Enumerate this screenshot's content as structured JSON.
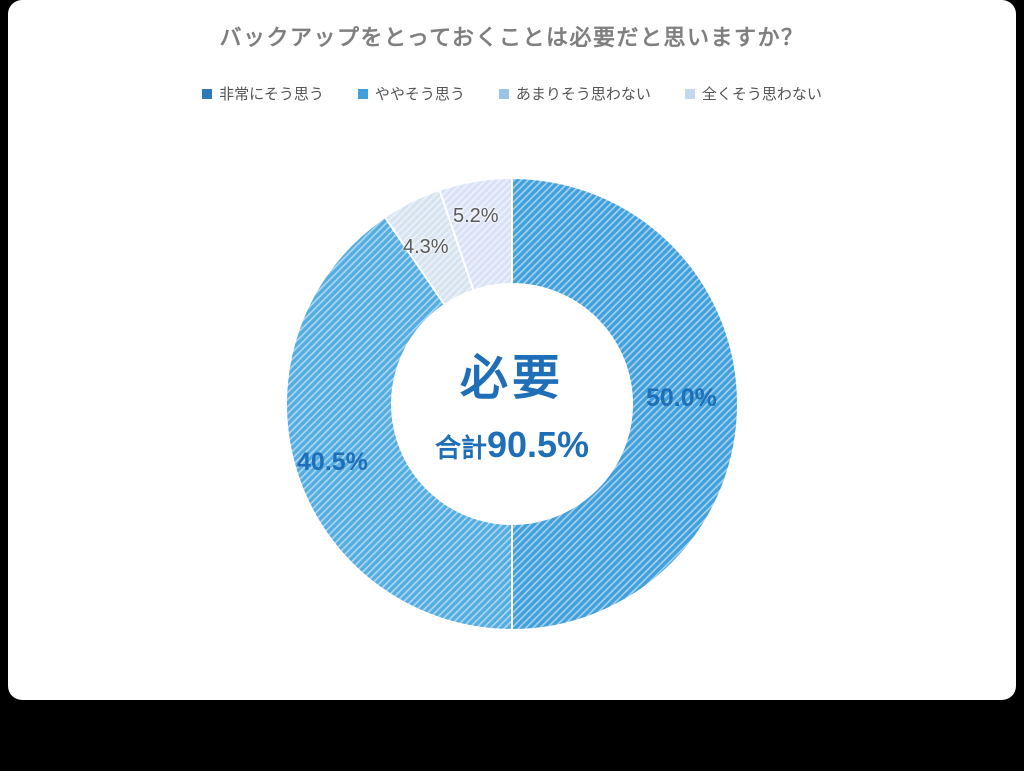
{
  "page": {
    "background_color": "#000000",
    "panel_color": "#ffffff",
    "title_color": "#7f7f7f",
    "accent_text_color": "#1f6fb8",
    "muted_label_color": "#595959"
  },
  "title": "バックアップをとっておくことは必要だと思いますか？",
  "legend": {
    "items": [
      {
        "label": "非常にそう思う",
        "color": "#2e79b8"
      },
      {
        "label": "ややそう思う",
        "color": "#41a0dc"
      },
      {
        "label": "あまりそう思わない",
        "color": "#9cc3e3"
      },
      {
        "label": "全くそう思わない",
        "color": "#c5d8f1"
      }
    ]
  },
  "slice_labels": [
    "50.0%",
    "40.5%",
    "4.3%",
    "5.2%"
  ],
  "center": {
    "main": "必要",
    "sub_prefix": "合計",
    "sub_value": "90.5%"
  },
  "chart_data": {
    "type": "pie",
    "subtype": "donut",
    "title": "バックアップをとっておくことは必要だと思いますか？",
    "categories": [
      "非常にそう思う",
      "ややそう思う",
      "あまりそう思わない",
      "全くそう思わない"
    ],
    "values": [
      50.0,
      40.5,
      4.3,
      5.2
    ],
    "value_labels": [
      "50.0%",
      "40.5%",
      "4.3%",
      "5.2%"
    ],
    "slice_colors": [
      "#41a0dc",
      "#54ade1",
      "#d7e3f0",
      "#dae2f6"
    ],
    "legend_colors": [
      "#2e79b8",
      "#41a0dc",
      "#9cc3e3",
      "#c5d8f1"
    ],
    "legend_position": "top",
    "start_angle_deg": 0,
    "direction": "clockwise",
    "fill_pattern": "diagonal-hatch",
    "center_label": "必要",
    "center_sublabel": "合計90.5%",
    "total_highlighted_value": 90.5
  }
}
